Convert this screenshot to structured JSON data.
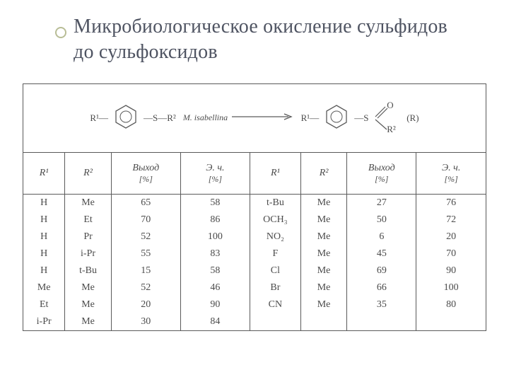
{
  "colors": {
    "title": "#4f5462",
    "bullet_border": "#b8bd96",
    "table_border": "#5a5a5a",
    "cell_text": "#4b4b4b",
    "background": "#ffffff"
  },
  "title": "Микробиологическое окисление сульфидов до сульфоксидов",
  "reaction": {
    "left_sub": "R¹—",
    "mid_sub": "—S—R²",
    "catalyst": "M. isabellina",
    "right_sub": "R¹—",
    "prod_sub": "—S",
    "prod_O": "O",
    "prod_R2": "R²",
    "note": "(R)"
  },
  "headers_left": {
    "c1": "R¹",
    "c2": "R²",
    "c3": "Выход",
    "c3_unit": "[%]",
    "c4": "Э. ч.",
    "c4_unit": "[%]"
  },
  "headers_right": {
    "c1": "R¹",
    "c2": "R²",
    "c3": "Выход",
    "c3_unit": "[%]",
    "c4": "Э. ч.",
    "c4_unit": "[%]"
  },
  "rows_left": [
    {
      "r1": "H",
      "r2": "Me",
      "y": "65",
      "ee": "58"
    },
    {
      "r1": "H",
      "r2": "Et",
      "y": "70",
      "ee": "86"
    },
    {
      "r1": "H",
      "r2": "Pr",
      "y": "52",
      "ee": "100"
    },
    {
      "r1": "H",
      "r2": "i-Pr",
      "y": "55",
      "ee": "83"
    },
    {
      "r1": "H",
      "r2": "t-Bu",
      "y": "15",
      "ee": "58"
    },
    {
      "r1": "Me",
      "r2": "Me",
      "y": "52",
      "ee": "46"
    },
    {
      "r1": "Et",
      "r2": "Me",
      "y": "20",
      "ee": "90"
    },
    {
      "r1": "i-Pr",
      "r2": "Me",
      "y": "30",
      "ee": "84"
    }
  ],
  "rows_right": [
    {
      "r1": "t-Bu",
      "r2": "Me",
      "y": "27",
      "ee": "76"
    },
    {
      "r1": "OCH₃",
      "r2": "Me",
      "y": "50",
      "ee": "72"
    },
    {
      "r1": "NO₂",
      "r2": "Me",
      "y": "6",
      "ee": "20"
    },
    {
      "r1": "F",
      "r2": "Me",
      "y": "45",
      "ee": "70"
    },
    {
      "r1": "Cl",
      "r2": "Me",
      "y": "69",
      "ee": "90"
    },
    {
      "r1": "Br",
      "r2": "Me",
      "y": "66",
      "ee": "100"
    },
    {
      "r1": "CN",
      "r2": "Me",
      "y": "35",
      "ee": "80"
    },
    {
      "r1": "",
      "r2": "",
      "y": "",
      "ee": ""
    }
  ]
}
